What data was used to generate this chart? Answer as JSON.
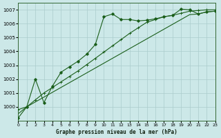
{
  "bg_color": "#cce8e8",
  "grid_color": "#aacccc",
  "line_color": "#1a5e1a",
  "title": "Graphe pression niveau de la mer (hPa)",
  "ylim": [
    999.0,
    1007.5
  ],
  "xlim": [
    0,
    23
  ],
  "yticks": [
    1000,
    1001,
    1002,
    1003,
    1004,
    1005,
    1006,
    1007
  ],
  "xticks": [
    0,
    1,
    2,
    3,
    4,
    5,
    6,
    7,
    8,
    9,
    10,
    11,
    12,
    13,
    14,
    15,
    16,
    17,
    18,
    19,
    20,
    21,
    22,
    23
  ],
  "line1_x": [
    0,
    1,
    2,
    3,
    4,
    5,
    6,
    7,
    8,
    9,
    10,
    11,
    12,
    13,
    14,
    15,
    16,
    17,
    18,
    19,
    20,
    21,
    22,
    23
  ],
  "line1_y": [
    999.5,
    1000.0,
    1000.35,
    1000.7,
    1001.05,
    1001.4,
    1001.75,
    1002.1,
    1002.45,
    1002.8,
    1003.15,
    1003.5,
    1003.85,
    1004.2,
    1004.55,
    1004.9,
    1005.25,
    1005.6,
    1005.95,
    1006.3,
    1006.65,
    1006.7,
    1006.85,
    1006.9
  ],
  "line2_x": [
    0,
    1,
    2,
    3,
    4,
    5,
    6,
    7,
    8,
    9,
    10,
    11,
    12,
    13,
    14,
    15,
    16,
    17,
    18,
    19,
    20,
    21,
    22,
    23
  ],
  "line2_y": [
    999.8,
    1000.0,
    1000.5,
    1001.0,
    1001.4,
    1001.8,
    1002.2,
    1002.6,
    1003.05,
    1003.5,
    1003.95,
    1004.4,
    1004.85,
    1005.3,
    1005.7,
    1006.1,
    1006.3,
    1006.5,
    1006.6,
    1006.75,
    1006.9,
    1006.95,
    1007.0,
    1007.0
  ],
  "line3_x": [
    0,
    1,
    2,
    3,
    4,
    5,
    6,
    7,
    8,
    9,
    10,
    11,
    12,
    13,
    14,
    15,
    16,
    17,
    18,
    19,
    20,
    21,
    22,
    23
  ],
  "line3_y": [
    999.2,
    1000.0,
    1002.0,
    1000.3,
    1001.5,
    1002.5,
    1002.9,
    1003.3,
    1003.8,
    1004.5,
    1006.5,
    1006.7,
    1006.3,
    1006.3,
    1006.2,
    1006.25,
    1006.35,
    1006.5,
    1006.6,
    1007.05,
    1007.0,
    1006.7,
    1006.85,
    1006.9
  ],
  "line3_marker": "D",
  "line1_marker": "None",
  "line2_marker": "+"
}
